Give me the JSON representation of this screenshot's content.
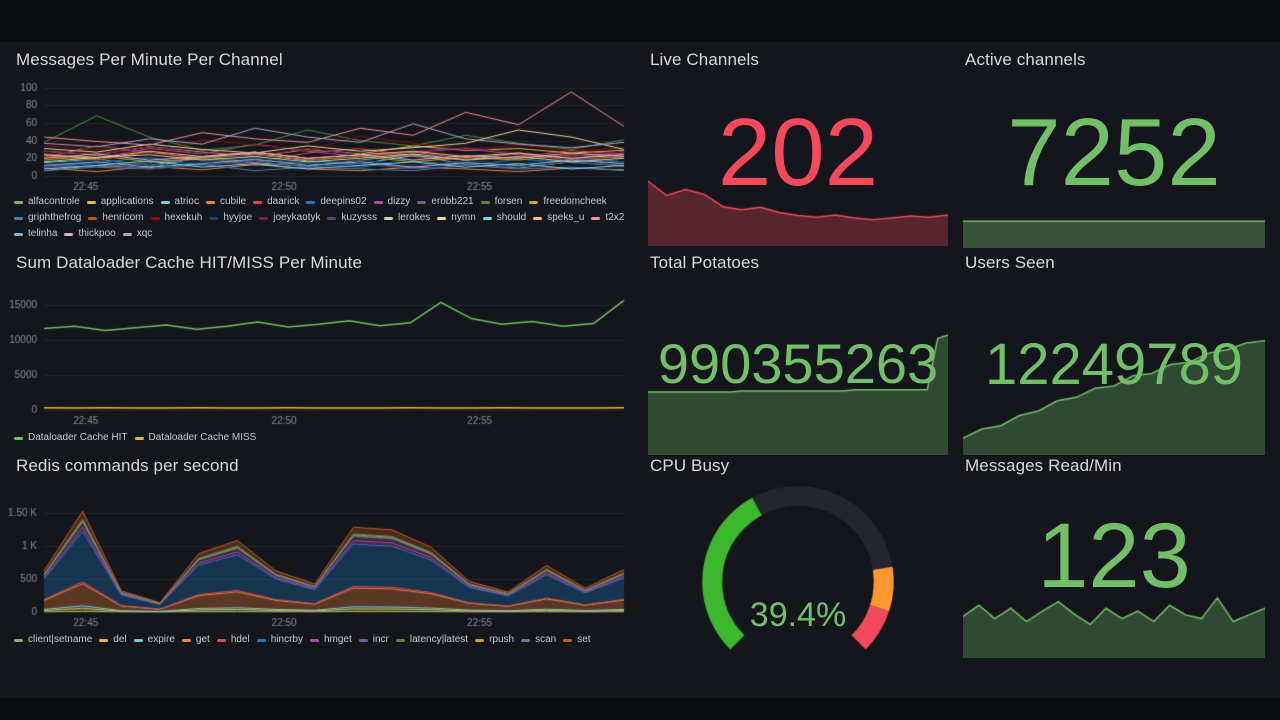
{
  "panels": {
    "messages": {
      "title": "Messages Per Minute Per Channel"
    },
    "dataloader": {
      "title": "Sum Dataloader Cache HIT/MISS Per Minute"
    },
    "redis": {
      "title": "Redis commands per second"
    },
    "live_channels": {
      "title": "Live Channels",
      "value": "202",
      "color": "#F2495C"
    },
    "active_channels": {
      "title": "Active channels",
      "value": "7252",
      "color": "#73BF69"
    },
    "total_potatoes": {
      "title": "Total Potatoes",
      "value": "990355263",
      "color": "#73BF69"
    },
    "users_seen": {
      "title": "Users Seen",
      "value": "12249789",
      "color": "#73BF69"
    },
    "cpu_busy": {
      "title": "CPU Busy",
      "value": "39.4%",
      "color": "#73BF69"
    },
    "messages_read": {
      "title": "Messages Read/Min",
      "value": "123",
      "color": "#73BF69"
    }
  },
  "chart_data": [
    {
      "id": "messages",
      "type": "line",
      "title": "Messages Per Minute Per Channel",
      "ylim": [
        0,
        104
      ],
      "yticks": [
        {
          "v": 0,
          "l": "0"
        },
        {
          "v": 20,
          "l": "20"
        },
        {
          "v": 40,
          "l": "40"
        },
        {
          "v": 60,
          "l": "60"
        },
        {
          "v": 80,
          "l": "80"
        },
        {
          "v": 100,
          "l": "100"
        }
      ],
      "xticks": [
        {
          "f": 0.072,
          "l": "22:45"
        },
        {
          "f": 0.414,
          "l": "22:50"
        },
        {
          "f": 0.751,
          "l": "22:55"
        }
      ],
      "legend_position": "bottom",
      "series": [
        {
          "name": "alfacontrole",
          "color": "#7EB26D",
          "values": [
            6,
            12,
            9,
            22,
            15,
            11,
            18,
            24,
            13,
            9,
            16,
            11
          ]
        },
        {
          "name": "applications",
          "color": "#EAB839",
          "values": [
            28,
            24,
            33,
            27,
            22,
            30,
            25,
            34,
            29,
            31,
            26,
            29
          ]
        },
        {
          "name": "atrioc",
          "color": "#6ED0E0",
          "values": [
            15,
            19,
            12,
            21,
            26,
            17,
            14,
            23,
            18,
            26,
            20,
            16
          ]
        },
        {
          "name": "cubile",
          "color": "#EF843C",
          "values": [
            9,
            5,
            11,
            7,
            13,
            8,
            6,
            10,
            8,
            5,
            9,
            7
          ]
        },
        {
          "name": "daarick",
          "color": "#E24D42",
          "values": [
            21,
            34,
            27,
            19,
            15,
            26,
            31,
            22,
            18,
            21,
            29,
            24
          ]
        },
        {
          "name": "deepins02",
          "color": "#1F78C1",
          "values": [
            11,
            15,
            21,
            12,
            18,
            14,
            10,
            17,
            12,
            19,
            15,
            12
          ]
        },
        {
          "name": "dizzy",
          "color": "#BA43A9",
          "values": [
            25,
            20,
            31,
            25,
            36,
            28,
            22,
            27,
            31,
            24,
            20,
            26
          ]
        },
        {
          "name": "erobb221",
          "color": "#705DA0",
          "values": [
            12,
            10,
            15,
            19,
            12,
            16,
            14,
            10,
            15,
            12,
            18,
            14
          ]
        },
        {
          "name": "forsen",
          "color": "#508642",
          "values": [
            38,
            68,
            44,
            29,
            35,
            52,
            40,
            34,
            46,
            37,
            30,
            41
          ]
        },
        {
          "name": "freedomcheek",
          "color": "#CCA300",
          "values": [
            18,
            23,
            16,
            20,
            25,
            18,
            22,
            16,
            21,
            18,
            24,
            20
          ]
        },
        {
          "name": "griphthefrog",
          "color": "#447EBC",
          "values": [
            6,
            10,
            8,
            13,
            6,
            10,
            8,
            6,
            12,
            8,
            10,
            6
          ]
        },
        {
          "name": "henricom",
          "color": "#C15C17",
          "values": [
            23,
            18,
            27,
            20,
            24,
            18,
            22,
            27,
            20,
            25,
            18,
            22
          ]
        },
        {
          "name": "hexekuh",
          "color": "#890F02",
          "values": [
            34,
            30,
            25,
            41,
            35,
            29,
            45,
            37,
            30,
            35,
            28,
            32
          ]
        },
        {
          "name": "hyyjoe",
          "color": "#0A437C",
          "values": [
            14,
            18,
            12,
            16,
            21,
            14,
            18,
            12,
            17,
            14,
            20,
            16
          ]
        },
        {
          "name": "joeykaotyk",
          "color": "#6D1F62",
          "values": [
            28,
            24,
            33,
            26,
            22,
            31,
            24,
            28,
            32,
            26,
            22,
            28
          ]
        },
        {
          "name": "kuzysss",
          "color": "#584477",
          "values": [
            10,
            14,
            8,
            12,
            17,
            10,
            14,
            8,
            12,
            10,
            16,
            12
          ]
        },
        {
          "name": "lerokes",
          "color": "#B7DBAB",
          "values": [
            16,
            21,
            24,
            18,
            22,
            16,
            20,
            25,
            18,
            22,
            16,
            20
          ]
        },
        {
          "name": "nymn",
          "color": "#F4D598",
          "values": [
            31,
            27,
            36,
            30,
            26,
            34,
            28,
            32,
            37,
            52,
            44,
            30
          ]
        },
        {
          "name": "should",
          "color": "#70DBED",
          "values": [
            8,
            12,
            17,
            10,
            14,
            8,
            12,
            16,
            10,
            14,
            8,
            12
          ]
        },
        {
          "name": "speks_u",
          "color": "#F9BA8F",
          "values": [
            24,
            20,
            28,
            22,
            27,
            20,
            24,
            28,
            22,
            26,
            20,
            24
          ]
        },
        {
          "name": "t2x2",
          "color": "#F29191",
          "values": [
            44,
            39,
            35,
            49,
            42,
            38,
            54,
            46,
            72,
            58,
            95,
            56
          ]
        },
        {
          "name": "telinha",
          "color": "#82B5D8",
          "values": [
            12,
            16,
            10,
            14,
            19,
            12,
            16,
            10,
            15,
            12,
            18,
            14
          ]
        },
        {
          "name": "thickpoo",
          "color": "#E5A8E2",
          "values": [
            20,
            25,
            18,
            22,
            27,
            20,
            24,
            18,
            23,
            20,
            26,
            22
          ]
        },
        {
          "name": "xqc",
          "color": "#AEA2CA",
          "values": [
            37,
            33,
            42,
            36,
            54,
            44,
            38,
            59,
            42,
            36,
            32,
            38
          ]
        }
      ]
    },
    {
      "id": "dataloader",
      "type": "line",
      "title": "Sum Dataloader Cache HIT/MISS Per Minute",
      "ylim": [
        0,
        16500
      ],
      "yticks": [
        {
          "v": 0,
          "l": "0"
        },
        {
          "v": 5000,
          "l": "5000"
        },
        {
          "v": 10000,
          "l": "10000"
        },
        {
          "v": 15000,
          "l": "15000"
        }
      ],
      "xticks": [
        {
          "f": 0.072,
          "l": "22:45"
        },
        {
          "f": 0.414,
          "l": "22:50"
        },
        {
          "f": 0.751,
          "l": "22:55"
        }
      ],
      "legend_position": "bottom",
      "series": [
        {
          "name": "Dataloader Cache HIT",
          "color": "#73BF69",
          "width": 1.5,
          "values": [
            11600,
            11900,
            11300,
            11700,
            12100,
            11500,
            11900,
            12500,
            11800,
            12200,
            12700,
            12000,
            12400,
            15300,
            13000,
            12200,
            12600,
            11900,
            12300,
            15600
          ]
        },
        {
          "name": "Dataloader Cache MISS",
          "color": "#EAB839",
          "width": 1.5,
          "values": [
            320,
            290,
            330,
            300,
            290,
            310,
            280,
            300,
            330,
            290,
            300,
            280,
            310,
            300,
            290,
            330,
            300,
            280,
            300,
            320
          ]
        }
      ]
    },
    {
      "id": "redis",
      "type": "area",
      "stacked": true,
      "fill_alpha": 0.32,
      "title": "Redis commands per second",
      "ylim": [
        0,
        1600
      ],
      "yticks": [
        {
          "v": 0,
          "l": "0"
        },
        {
          "v": 500,
          "l": "500"
        },
        {
          "v": 1000,
          "l": "1 K"
        },
        {
          "v": 1500,
          "l": "1.50 K"
        }
      ],
      "xticks": [
        {
          "f": 0.072,
          "l": "22:45"
        },
        {
          "f": 0.414,
          "l": "22:50"
        },
        {
          "f": 0.751,
          "l": "22:55"
        }
      ],
      "legend_position": "bottom",
      "series": [
        {
          "name": "client|setname",
          "color": "#7EB26D",
          "values": [
            4,
            9,
            2,
            1,
            5,
            6,
            4,
            3,
            8,
            7,
            6,
            3,
            2,
            4,
            2,
            4
          ]
        },
        {
          "name": "del",
          "color": "#EAB839",
          "values": [
            19,
            46,
            10,
            4,
            26,
            32,
            19,
            13,
            38,
            37,
            29,
            14,
            9,
            21,
            11,
            19
          ]
        },
        {
          "name": "expire",
          "color": "#6ED0E0",
          "values": [
            16,
            38,
            8,
            4,
            22,
            27,
            16,
            11,
            32,
            31,
            25,
            12,
            8,
            18,
            9,
            16
          ]
        },
        {
          "name": "get",
          "color": "#EF843C",
          "values": [
            136,
            334,
            70,
            31,
            194,
            238,
            136,
            92,
            282,
            273,
            216,
            101,
            66,
            154,
            79,
            141
          ]
        },
        {
          "name": "hdel",
          "color": "#E24D42",
          "values": [
            12,
            30,
            6,
            3,
            18,
            22,
            12,
            8,
            26,
            25,
            20,
            9,
            6,
            14,
            7,
            13
          ]
        },
        {
          "name": "hincrby",
          "color": "#1F78C1",
          "values": [
            310,
            760,
            160,
            70,
            440,
            540,
            310,
            210,
            640,
            620,
            490,
            230,
            150,
            350,
            180,
            320
          ]
        },
        {
          "name": "hmget",
          "color": "#BA43A9",
          "values": [
            25,
            61,
            13,
            6,
            35,
            43,
            25,
            17,
            51,
            50,
            39,
            18,
            12,
            28,
            14,
            26
          ]
        },
        {
          "name": "incr",
          "color": "#705DA0",
          "values": [
            31,
            76,
            16,
            7,
            44,
            54,
            31,
            21,
            64,
            62,
            49,
            23,
            15,
            35,
            18,
            32
          ]
        },
        {
          "name": "latency|latest",
          "color": "#508642",
          "values": [
            2,
            6,
            1,
            1,
            4,
            4,
            2,
            2,
            5,
            5,
            4,
            2,
            1,
            3,
            1,
            3
          ]
        },
        {
          "name": "rpush",
          "color": "#CCA300",
          "values": [
            9,
            23,
            5,
            2,
            13,
            16,
            9,
            6,
            19,
            19,
            15,
            7,
            5,
            11,
            5,
            10
          ]
        },
        {
          "name": "scan",
          "color": "#447EBC",
          "values": [
            6,
            15,
            3,
            1,
            9,
            11,
            6,
            4,
            13,
            12,
            10,
            5,
            3,
            7,
            4,
            6
          ]
        },
        {
          "name": "set",
          "color": "#C15C17",
          "values": [
            50,
            122,
            26,
            11,
            70,
            86,
            50,
            34,
            102,
            99,
            78,
            37,
            24,
            56,
            29,
            51
          ]
        }
      ]
    },
    {
      "id": "spark-live",
      "type": "sparkline",
      "color": "#F2495C",
      "fill": 0.3,
      "min": 150,
      "max": 262,
      "values": [
        258,
        234,
        244,
        236,
        215,
        210,
        214,
        205,
        200,
        197,
        201,
        196,
        193,
        196,
        199,
        197,
        201
      ]
    },
    {
      "id": "spark-active",
      "type": "sparkline",
      "color": "#73BF69",
      "fill": 0.35,
      "min": 0,
      "max": 7600,
      "values": [
        7252,
        7252,
        7252,
        7252,
        7252,
        7252,
        7252,
        7252,
        7252,
        7252,
        7252,
        7252
      ]
    },
    {
      "id": "spark-potatoes",
      "type": "sparkline",
      "color": "#73BF69",
      "fill": 0.3,
      "min": 0,
      "max": 100,
      "values": [
        52,
        52,
        52,
        52,
        52,
        52,
        52,
        52,
        52,
        53,
        53,
        53,
        53,
        53,
        53,
        53,
        53,
        53,
        53,
        53,
        54,
        54,
        54,
        54,
        54,
        54,
        54,
        54,
        97,
        100
      ]
    },
    {
      "id": "spark-users",
      "type": "sparkline",
      "color": "#73BF69",
      "fill": 0.3,
      "min": 0,
      "max": 105,
      "values": [
        14,
        22,
        25,
        34,
        38,
        47,
        50,
        58,
        60,
        69,
        71,
        79,
        81,
        89,
        92,
        98,
        100
      ]
    },
    {
      "id": "spark-msgs",
      "type": "sparkline",
      "color": "#73BF69",
      "fill": 0.3,
      "min": 0,
      "max": 88,
      "values": [
        55,
        70,
        52,
        66,
        48,
        62,
        75,
        58,
        44,
        66,
        52,
        62,
        48,
        70,
        57,
        52,
        80,
        48,
        57,
        66
      ]
    },
    {
      "id": "cpu-gauge",
      "type": "gauge",
      "percent": 39.4,
      "color": "#3CB72E",
      "track": "#24262c",
      "thickness": 20,
      "thresholds": [
        {
          "from": 80,
          "to": 90,
          "color": "#FF9830"
        },
        {
          "from": 90,
          "to": 100,
          "color": "#F2495C"
        }
      ]
    }
  ]
}
